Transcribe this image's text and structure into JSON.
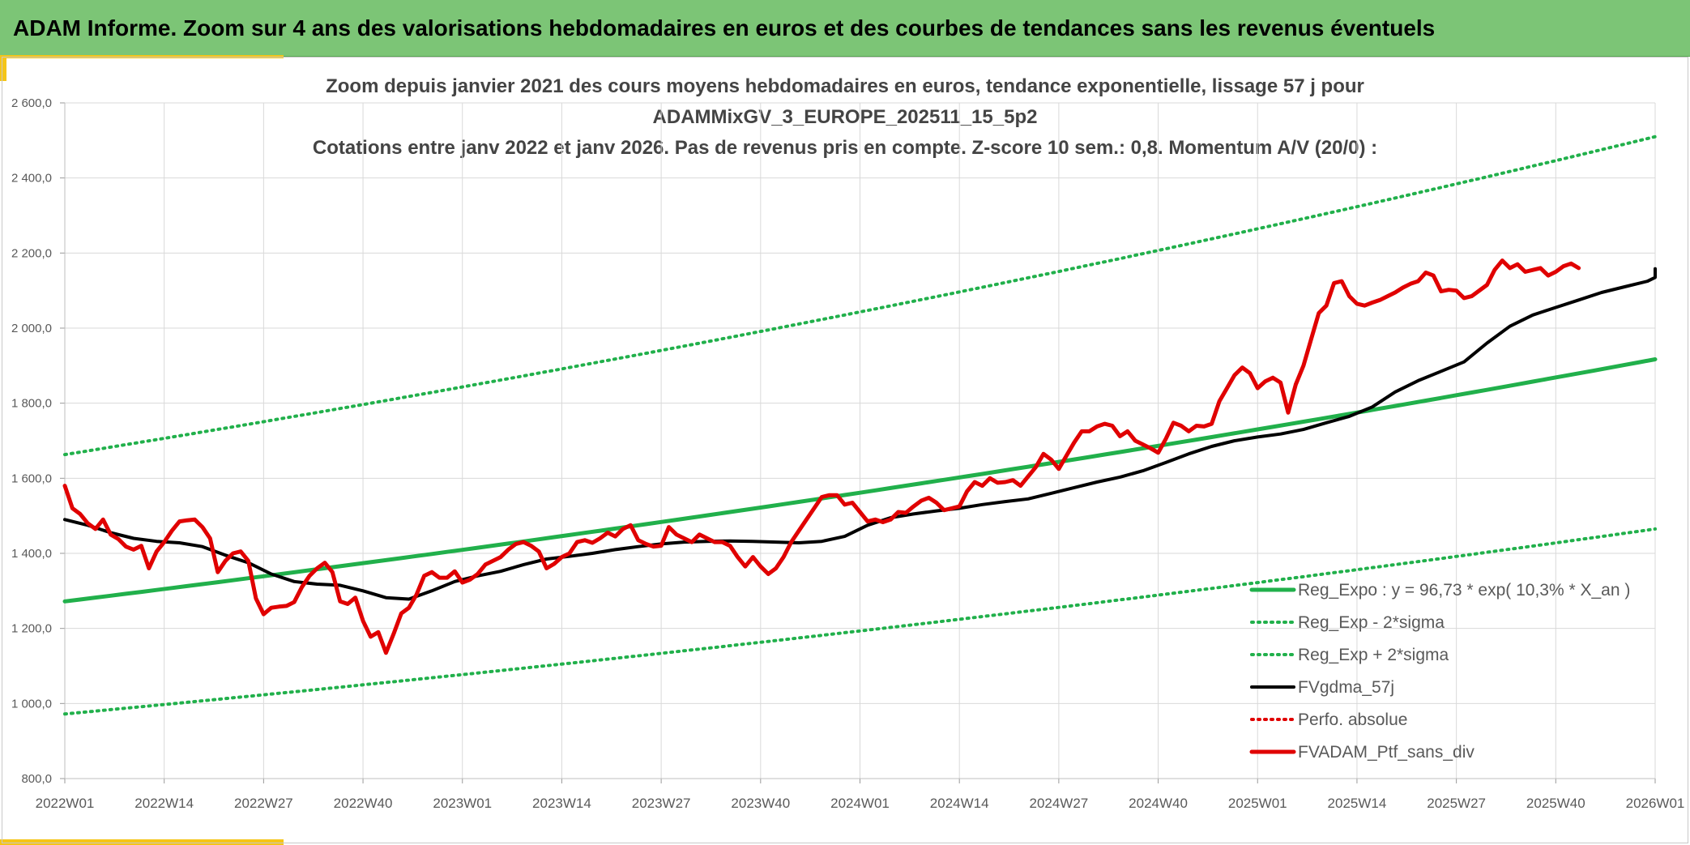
{
  "banner": {
    "title": "ADAM Informe. Zoom sur 4 ans des valorisations hebdomadaires en euros et des courbes de tendances sans les revenus éventuels"
  },
  "colors": {
    "banner": "#7cc576",
    "accent": "#f5c518",
    "reg_expo": "#21b04b",
    "fvgdma": "#000000",
    "perfo": "#e00000",
    "fvadam": "#e00000",
    "grid": "#d9d9d9"
  },
  "chart_data": {
    "type": "line",
    "title_lines": [
      "Zoom depuis janvier 2021 des cours moyens hebdomadaires en euros, tendance exponentielle, lissage 57 j pour",
      "ADAMMixGV_3_EUROPE_202511_15_5p2",
      "Cotations entre janv 2022 et janv 2026. Pas de revenus pris en compte. Z-score 10 sem.: 0,8. Momentum A/V (20/0) :"
    ],
    "y_ticks": [
      "800,0",
      "1 000,0",
      "1 200,0",
      "1 400,0",
      "1 600,0",
      "1 800,0",
      "2 000,0",
      "2 200,0",
      "2 400,0",
      "2 600,0"
    ],
    "ylim": [
      800,
      2600
    ],
    "x_ticks": [
      "2022W01",
      "2022W14",
      "2022W27",
      "2022W40",
      "2023W01",
      "2023W14",
      "2023W27",
      "2023W40",
      "2024W01",
      "2024W14",
      "2024W27",
      "2024W40",
      "2025W01",
      "2025W14",
      "2025W27",
      "2025W40",
      "2026W01"
    ],
    "x_week_range": [
      0,
      208
    ],
    "grid": true,
    "legend_position": "bottom-right",
    "series": [
      {
        "name": "Reg_Expo : y = 96,73 * exp( 10,3% *  X_an )",
        "style": "solid-green",
        "points": [
          [
            0,
            1272
          ],
          [
            52,
            1408
          ],
          [
            104,
            1559
          ],
          [
            156,
            1727
          ],
          [
            208,
            1917
          ]
        ]
      },
      {
        "name": "Reg_Exp - 2*sigma",
        "style": "dotted-green",
        "points": [
          [
            0,
            972
          ],
          [
            52,
            1077
          ],
          [
            104,
            1191
          ],
          [
            156,
            1320
          ],
          [
            208,
            1465
          ]
        ]
      },
      {
        "name": "Reg_Exp + 2*sigma",
        "style": "dotted-green",
        "points": [
          [
            0,
            1663
          ],
          [
            52,
            1842
          ],
          [
            104,
            2039
          ],
          [
            156,
            2258
          ],
          [
            208,
            2510
          ]
        ]
      },
      {
        "name": "FVgdma_57j",
        "style": "solid-black",
        "points": [
          [
            0,
            1490
          ],
          [
            3,
            1475
          ],
          [
            6,
            1455
          ],
          [
            9,
            1440
          ],
          [
            12,
            1432
          ],
          [
            15,
            1428
          ],
          [
            18,
            1418
          ],
          [
            21,
            1395
          ],
          [
            24,
            1375
          ],
          [
            27,
            1345
          ],
          [
            30,
            1325
          ],
          [
            33,
            1318
          ],
          [
            36,
            1315
          ],
          [
            39,
            1300
          ],
          [
            42,
            1282
          ],
          [
            45,
            1278
          ],
          [
            48,
            1300
          ],
          [
            51,
            1325
          ],
          [
            54,
            1340
          ],
          [
            57,
            1352
          ],
          [
            60,
            1370
          ],
          [
            63,
            1385
          ],
          [
            66,
            1392
          ],
          [
            69,
            1400
          ],
          [
            72,
            1410
          ],
          [
            75,
            1418
          ],
          [
            78,
            1425
          ],
          [
            81,
            1430
          ],
          [
            84,
            1432
          ],
          [
            87,
            1433
          ],
          [
            90,
            1432
          ],
          [
            93,
            1430
          ],
          [
            96,
            1428
          ],
          [
            99,
            1432
          ],
          [
            102,
            1445
          ],
          [
            105,
            1475
          ],
          [
            108,
            1495
          ],
          [
            111,
            1505
          ],
          [
            114,
            1513
          ],
          [
            117,
            1520
          ],
          [
            120,
            1530
          ],
          [
            123,
            1538
          ],
          [
            126,
            1545
          ],
          [
            129,
            1560
          ],
          [
            132,
            1575
          ],
          [
            135,
            1590
          ],
          [
            138,
            1603
          ],
          [
            141,
            1620
          ],
          [
            144,
            1642
          ],
          [
            147,
            1665
          ],
          [
            150,
            1685
          ],
          [
            153,
            1700
          ],
          [
            156,
            1710
          ],
          [
            159,
            1718
          ],
          [
            162,
            1730
          ],
          [
            165,
            1748
          ],
          [
            168,
            1765
          ],
          [
            171,
            1790
          ],
          [
            174,
            1830
          ],
          [
            177,
            1860
          ],
          [
            180,
            1885
          ],
          [
            183,
            1910
          ],
          [
            186,
            1960
          ],
          [
            189,
            2005
          ],
          [
            192,
            2035
          ],
          [
            195,
            2055
          ],
          [
            198,
            2075
          ],
          [
            201,
            2095
          ],
          [
            204,
            2110
          ],
          [
            207,
            2125
          ],
          [
            210,
            2135
          ],
          [
            213,
            2142
          ],
          [
            216,
            2150
          ],
          [
            219,
            2158
          ]
        ]
      },
      {
        "name": "Perfo. absolue",
        "style": "dotted-red",
        "points": []
      },
      {
        "name": "FVADAM_Ptf_sans_div",
        "style": "solid-red",
        "points": [
          [
            0,
            1580
          ],
          [
            1,
            1520
          ],
          [
            2,
            1505
          ],
          [
            3,
            1480
          ],
          [
            4,
            1465
          ],
          [
            5,
            1490
          ],
          [
            6,
            1450
          ],
          [
            7,
            1438
          ],
          [
            8,
            1418
          ],
          [
            9,
            1410
          ],
          [
            10,
            1420
          ],
          [
            11,
            1360
          ],
          [
            12,
            1405
          ],
          [
            13,
            1430
          ],
          [
            14,
            1460
          ],
          [
            15,
            1485
          ],
          [
            16,
            1488
          ],
          [
            17,
            1490
          ],
          [
            18,
            1470
          ],
          [
            19,
            1440
          ],
          [
            20,
            1350
          ],
          [
            21,
            1380
          ],
          [
            22,
            1400
          ],
          [
            23,
            1405
          ],
          [
            24,
            1380
          ],
          [
            25,
            1280
          ],
          [
            26,
            1238
          ],
          [
            27,
            1255
          ],
          [
            28,
            1258
          ],
          [
            29,
            1260
          ],
          [
            30,
            1270
          ],
          [
            31,
            1310
          ],
          [
            32,
            1340
          ],
          [
            33,
            1360
          ],
          [
            34,
            1375
          ],
          [
            35,
            1350
          ],
          [
            36,
            1272
          ],
          [
            37,
            1265
          ],
          [
            38,
            1282
          ],
          [
            39,
            1220
          ],
          [
            40,
            1178
          ],
          [
            41,
            1190
          ],
          [
            42,
            1135
          ],
          [
            43,
            1185
          ],
          [
            44,
            1240
          ],
          [
            45,
            1255
          ],
          [
            46,
            1290
          ],
          [
            47,
            1340
          ],
          [
            48,
            1350
          ],
          [
            49,
            1335
          ],
          [
            50,
            1335
          ],
          [
            51,
            1352
          ],
          [
            52,
            1322
          ],
          [
            53,
            1330
          ],
          [
            54,
            1345
          ],
          [
            55,
            1370
          ],
          [
            56,
            1380
          ],
          [
            57,
            1390
          ],
          [
            58,
            1410
          ],
          [
            59,
            1425
          ],
          [
            60,
            1430
          ],
          [
            61,
            1420
          ],
          [
            62,
            1405
          ],
          [
            63,
            1360
          ],
          [
            64,
            1372
          ],
          [
            65,
            1390
          ],
          [
            66,
            1400
          ],
          [
            67,
            1430
          ],
          [
            68,
            1435
          ],
          [
            69,
            1428
          ],
          [
            70,
            1440
          ],
          [
            71,
            1455
          ],
          [
            72,
            1445
          ],
          [
            73,
            1465
          ],
          [
            74,
            1475
          ],
          [
            75,
            1435
          ],
          [
            76,
            1425
          ],
          [
            77,
            1418
          ],
          [
            78,
            1420
          ],
          [
            79,
            1470
          ],
          [
            80,
            1450
          ],
          [
            81,
            1440
          ],
          [
            82,
            1430
          ],
          [
            83,
            1450
          ],
          [
            84,
            1440
          ],
          [
            85,
            1430
          ],
          [
            86,
            1430
          ],
          [
            87,
            1420
          ],
          [
            88,
            1390
          ],
          [
            89,
            1365
          ],
          [
            90,
            1390
          ],
          [
            91,
            1365
          ],
          [
            92,
            1345
          ],
          [
            93,
            1360
          ],
          [
            94,
            1390
          ],
          [
            95,
            1430
          ],
          [
            96,
            1460
          ],
          [
            97,
            1490
          ],
          [
            98,
            1520
          ],
          [
            99,
            1550
          ],
          [
            100,
            1555
          ],
          [
            101,
            1555
          ],
          [
            102,
            1530
          ],
          [
            103,
            1535
          ],
          [
            104,
            1510
          ],
          [
            105,
            1485
          ],
          [
            106,
            1490
          ],
          [
            107,
            1483
          ],
          [
            108,
            1490
          ],
          [
            109,
            1510
          ],
          [
            110,
            1508
          ],
          [
            111,
            1525
          ],
          [
            112,
            1540
          ],
          [
            113,
            1548
          ],
          [
            114,
            1535
          ],
          [
            115,
            1515
          ],
          [
            116,
            1520
          ],
          [
            117,
            1525
          ],
          [
            118,
            1565
          ],
          [
            119,
            1590
          ],
          [
            120,
            1580
          ],
          [
            121,
            1600
          ],
          [
            122,
            1588
          ],
          [
            123,
            1590
          ],
          [
            124,
            1595
          ],
          [
            125,
            1580
          ],
          [
            126,
            1605
          ],
          [
            127,
            1630
          ],
          [
            128,
            1665
          ],
          [
            129,
            1650
          ],
          [
            130,
            1625
          ],
          [
            131,
            1660
          ],
          [
            132,
            1695
          ],
          [
            133,
            1725
          ],
          [
            134,
            1725
          ],
          [
            135,
            1738
          ],
          [
            136,
            1745
          ],
          [
            137,
            1740
          ],
          [
            138,
            1712
          ],
          [
            139,
            1725
          ],
          [
            140,
            1700
          ],
          [
            141,
            1690
          ],
          [
            142,
            1680
          ],
          [
            143,
            1668
          ],
          [
            144,
            1705
          ],
          [
            145,
            1748
          ],
          [
            146,
            1740
          ],
          [
            147,
            1725
          ],
          [
            148,
            1740
          ],
          [
            149,
            1738
          ],
          [
            150,
            1745
          ],
          [
            151,
            1805
          ],
          [
            152,
            1840
          ],
          [
            153,
            1875
          ],
          [
            154,
            1895
          ],
          [
            155,
            1880
          ],
          [
            156,
            1840
          ],
          [
            157,
            1858
          ],
          [
            158,
            1868
          ],
          [
            159,
            1855
          ],
          [
            160,
            1775
          ],
          [
            161,
            1850
          ],
          [
            162,
            1900
          ],
          [
            163,
            1970
          ],
          [
            164,
            2040
          ],
          [
            165,
            2060
          ],
          [
            166,
            2120
          ],
          [
            167,
            2125
          ],
          [
            168,
            2085
          ],
          [
            169,
            2065
          ],
          [
            170,
            2060
          ],
          [
            171,
            2068
          ],
          [
            172,
            2075
          ],
          [
            173,
            2085
          ],
          [
            174,
            2095
          ],
          [
            175,
            2108
          ],
          [
            176,
            2118
          ],
          [
            177,
            2125
          ],
          [
            178,
            2148
          ],
          [
            179,
            2140
          ],
          [
            180,
            2098
          ],
          [
            181,
            2102
          ],
          [
            182,
            2100
          ],
          [
            183,
            2080
          ],
          [
            184,
            2085
          ],
          [
            185,
            2100
          ],
          [
            186,
            2115
          ],
          [
            187,
            2155
          ],
          [
            188,
            2180
          ],
          [
            189,
            2160
          ],
          [
            190,
            2170
          ],
          [
            191,
            2150
          ],
          [
            192,
            2155
          ],
          [
            193,
            2160
          ],
          [
            194,
            2140
          ],
          [
            195,
            2150
          ],
          [
            196,
            2165
          ],
          [
            197,
            2172
          ],
          [
            198,
            2160
          ]
        ]
      }
    ]
  }
}
